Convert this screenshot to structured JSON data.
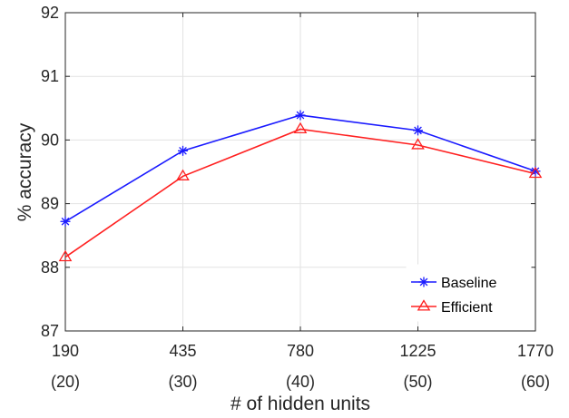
{
  "chart_data": {
    "type": "line",
    "title": "",
    "xlabel": "# of hidden units",
    "ylabel": "% accuracy",
    "categories": [
      "190",
      "435",
      "780",
      "1225",
      "1770"
    ],
    "category_sublabels": [
      "(20)",
      "(30)",
      "(40)",
      "(50)",
      "(60)"
    ],
    "ylim": [
      87,
      92
    ],
    "yticks": [
      "87",
      "88",
      "89",
      "90",
      "91",
      "92"
    ],
    "grid": true,
    "legend_position": "bottom-right",
    "series": [
      {
        "name": "Baseline",
        "color": "#1a1aff",
        "marker": "asterisk",
        "values": [
          88.72,
          89.83,
          90.39,
          90.15,
          89.51
        ]
      },
      {
        "name": "Efficient",
        "color": "#ff2020",
        "marker": "triangle",
        "values": [
          88.16,
          89.43,
          90.17,
          89.92,
          89.47
        ]
      }
    ]
  }
}
